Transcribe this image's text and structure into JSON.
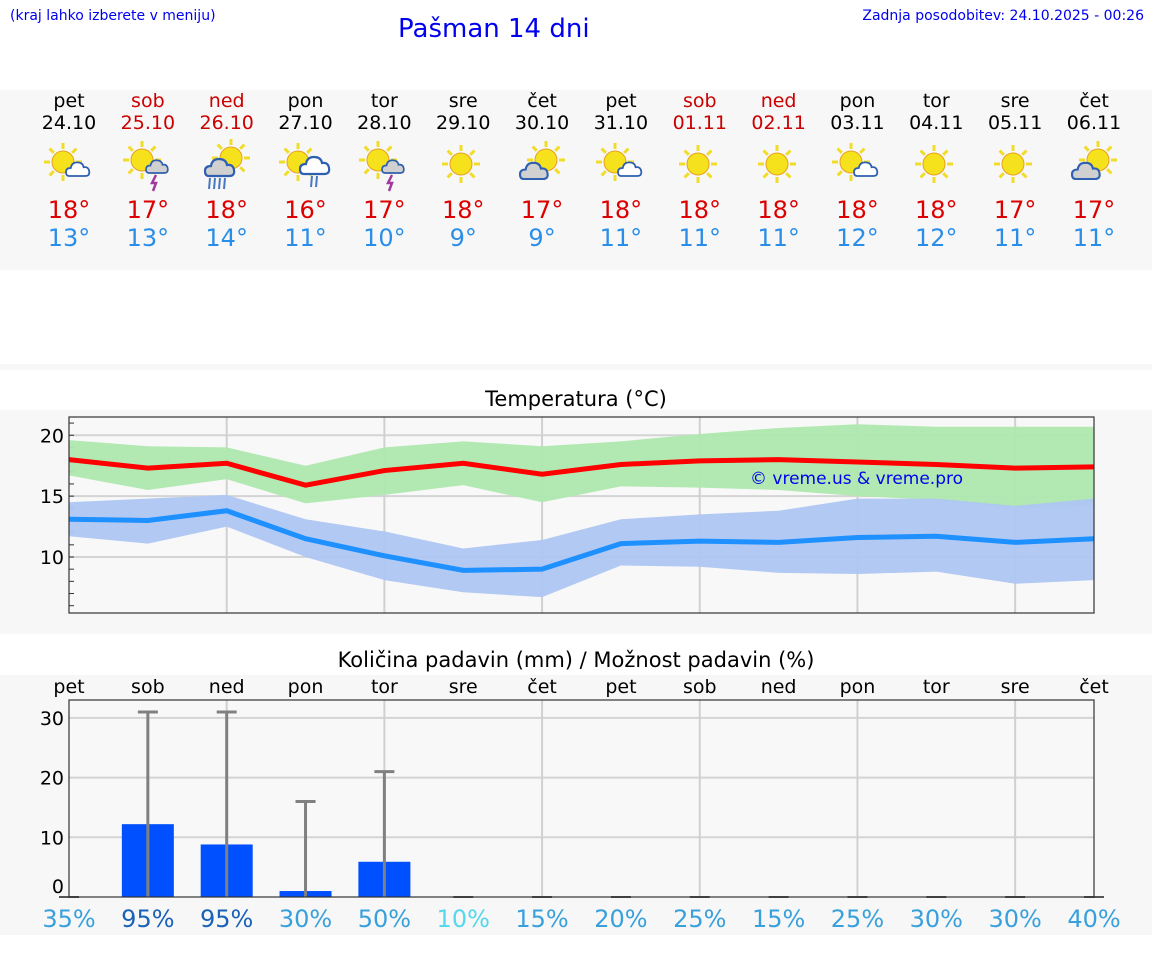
{
  "header": {
    "note": "(kraj lahko izberete v meniju)",
    "title": "Pašman 14 dni",
    "updated": "Zadnja posodobitev: 24.10.2025 - 00:26"
  },
  "days": [
    {
      "name": "pet",
      "date": "24.10",
      "weekend": false,
      "icon": "sun-small-cloud",
      "hi": "18°",
      "lo": "13°"
    },
    {
      "name": "sob",
      "date": "25.10",
      "weekend": true,
      "icon": "sun-cloud-thunder",
      "hi": "17°",
      "lo": "13°"
    },
    {
      "name": "ned",
      "date": "26.10",
      "weekend": true,
      "icon": "cloud-heavy-rain",
      "hi": "18°",
      "lo": "14°"
    },
    {
      "name": "pon",
      "date": "27.10",
      "weekend": false,
      "icon": "sun-cloud-light-rain",
      "hi": "16°",
      "lo": "11°"
    },
    {
      "name": "tor",
      "date": "28.10",
      "weekend": false,
      "icon": "sun-cloud-thunder",
      "hi": "17°",
      "lo": "10°"
    },
    {
      "name": "sre",
      "date": "29.10",
      "weekend": false,
      "icon": "sun",
      "hi": "18°",
      "lo": "9°"
    },
    {
      "name": "čet",
      "date": "30.10",
      "weekend": false,
      "icon": "sun-grey-cloud",
      "hi": "17°",
      "lo": "9°"
    },
    {
      "name": "pet",
      "date": "31.10",
      "weekend": false,
      "icon": "sun-small-cloud",
      "hi": "18°",
      "lo": "11°"
    },
    {
      "name": "sob",
      "date": "01.11",
      "weekend": true,
      "icon": "sun",
      "hi": "18°",
      "lo": "11°"
    },
    {
      "name": "ned",
      "date": "02.11",
      "weekend": true,
      "icon": "sun",
      "hi": "18°",
      "lo": "11°"
    },
    {
      "name": "pon",
      "date": "03.11",
      "weekend": false,
      "icon": "sun-small-cloud",
      "hi": "18°",
      "lo": "12°"
    },
    {
      "name": "tor",
      "date": "04.11",
      "weekend": false,
      "icon": "sun",
      "hi": "18°",
      "lo": "12°"
    },
    {
      "name": "sre",
      "date": "05.11",
      "weekend": false,
      "icon": "sun",
      "hi": "17°",
      "lo": "11°"
    },
    {
      "name": "čet",
      "date": "06.11",
      "weekend": false,
      "icon": "sun-grey-cloud",
      "hi": "17°",
      "lo": "11°"
    }
  ],
  "colors": {
    "hi": "#dd0000",
    "lo": "#2a8ee8",
    "max_line": "#ff0000",
    "max_band": "#aee8ae",
    "min_line": "#1e90ff",
    "min_band": "#aec6f2",
    "bar": "#0050ff",
    "err": "#808080"
  },
  "chart_data": [
    {
      "type": "line",
      "title": "Temperatura (°C)",
      "ylim": [
        5.4,
        21.5
      ],
      "yticks": [
        10,
        15,
        20
      ],
      "ytick_labels": [
        "10",
        "15",
        "20"
      ],
      "watermark": "© vreme.us & vreme.pro",
      "x": [
        0,
        1,
        2,
        3,
        4,
        5,
        6,
        7,
        8,
        9,
        10,
        11,
        12,
        13
      ],
      "series": [
        {
          "name": "max",
          "values": [
            18.0,
            17.3,
            17.7,
            15.9,
            17.1,
            17.7,
            16.8,
            17.6,
            17.9,
            18.0,
            17.8,
            17.6,
            17.3,
            17.4
          ],
          "band_high": [
            19.6,
            19.1,
            19.0,
            17.5,
            19.0,
            19.5,
            19.1,
            19.5,
            20.1,
            20.6,
            20.9,
            20.7,
            20.7,
            20.7
          ],
          "band_low": [
            16.7,
            15.5,
            16.4,
            14.4,
            15.1,
            15.9,
            14.5,
            15.8,
            15.7,
            15.5,
            15.0,
            14.7,
            14.0,
            14.2
          ]
        },
        {
          "name": "min",
          "values": [
            13.1,
            13.0,
            13.8,
            11.5,
            10.1,
            8.9,
            9.0,
            11.1,
            11.3,
            11.2,
            11.6,
            11.7,
            11.2,
            11.5
          ],
          "band_high": [
            14.5,
            14.8,
            15.1,
            13.1,
            12.1,
            10.7,
            11.4,
            13.1,
            13.5,
            13.8,
            14.8,
            14.8,
            14.2,
            14.8
          ],
          "band_low": [
            11.7,
            11.1,
            12.5,
            10.0,
            8.1,
            7.1,
            6.7,
            9.3,
            9.2,
            8.7,
            8.6,
            8.8,
            7.8,
            8.1
          ]
        }
      ]
    },
    {
      "type": "bar",
      "title": "Količina padavin (mm) / Možnost padavin (%)",
      "ylim": [
        0,
        33
      ],
      "yticks": [
        0,
        10,
        20,
        30
      ],
      "ytick_labels": [
        "0",
        "10",
        "20",
        "30"
      ],
      "categories": [
        "pet",
        "sob",
        "ned",
        "pon",
        "tor",
        "sre",
        "čet",
        "pet",
        "sob",
        "ned",
        "pon",
        "tor",
        "sre",
        "čet"
      ],
      "values": [
        0,
        12.2,
        8.8,
        1.0,
        5.9,
        0,
        0,
        0,
        0,
        0,
        0,
        0,
        0,
        0
      ],
      "error_high": [
        0,
        31,
        31,
        16,
        21,
        0,
        0,
        0,
        0,
        0,
        0,
        0,
        0,
        0
      ],
      "probability": [
        "35%",
        "95%",
        "95%",
        "30%",
        "50%",
        "10%",
        "15%",
        "20%",
        "25%",
        "15%",
        "25%",
        "30%",
        "30%",
        "40%"
      ],
      "probability_values": [
        35,
        95,
        95,
        30,
        50,
        10,
        15,
        20,
        25,
        15,
        25,
        30,
        30,
        40
      ]
    }
  ]
}
